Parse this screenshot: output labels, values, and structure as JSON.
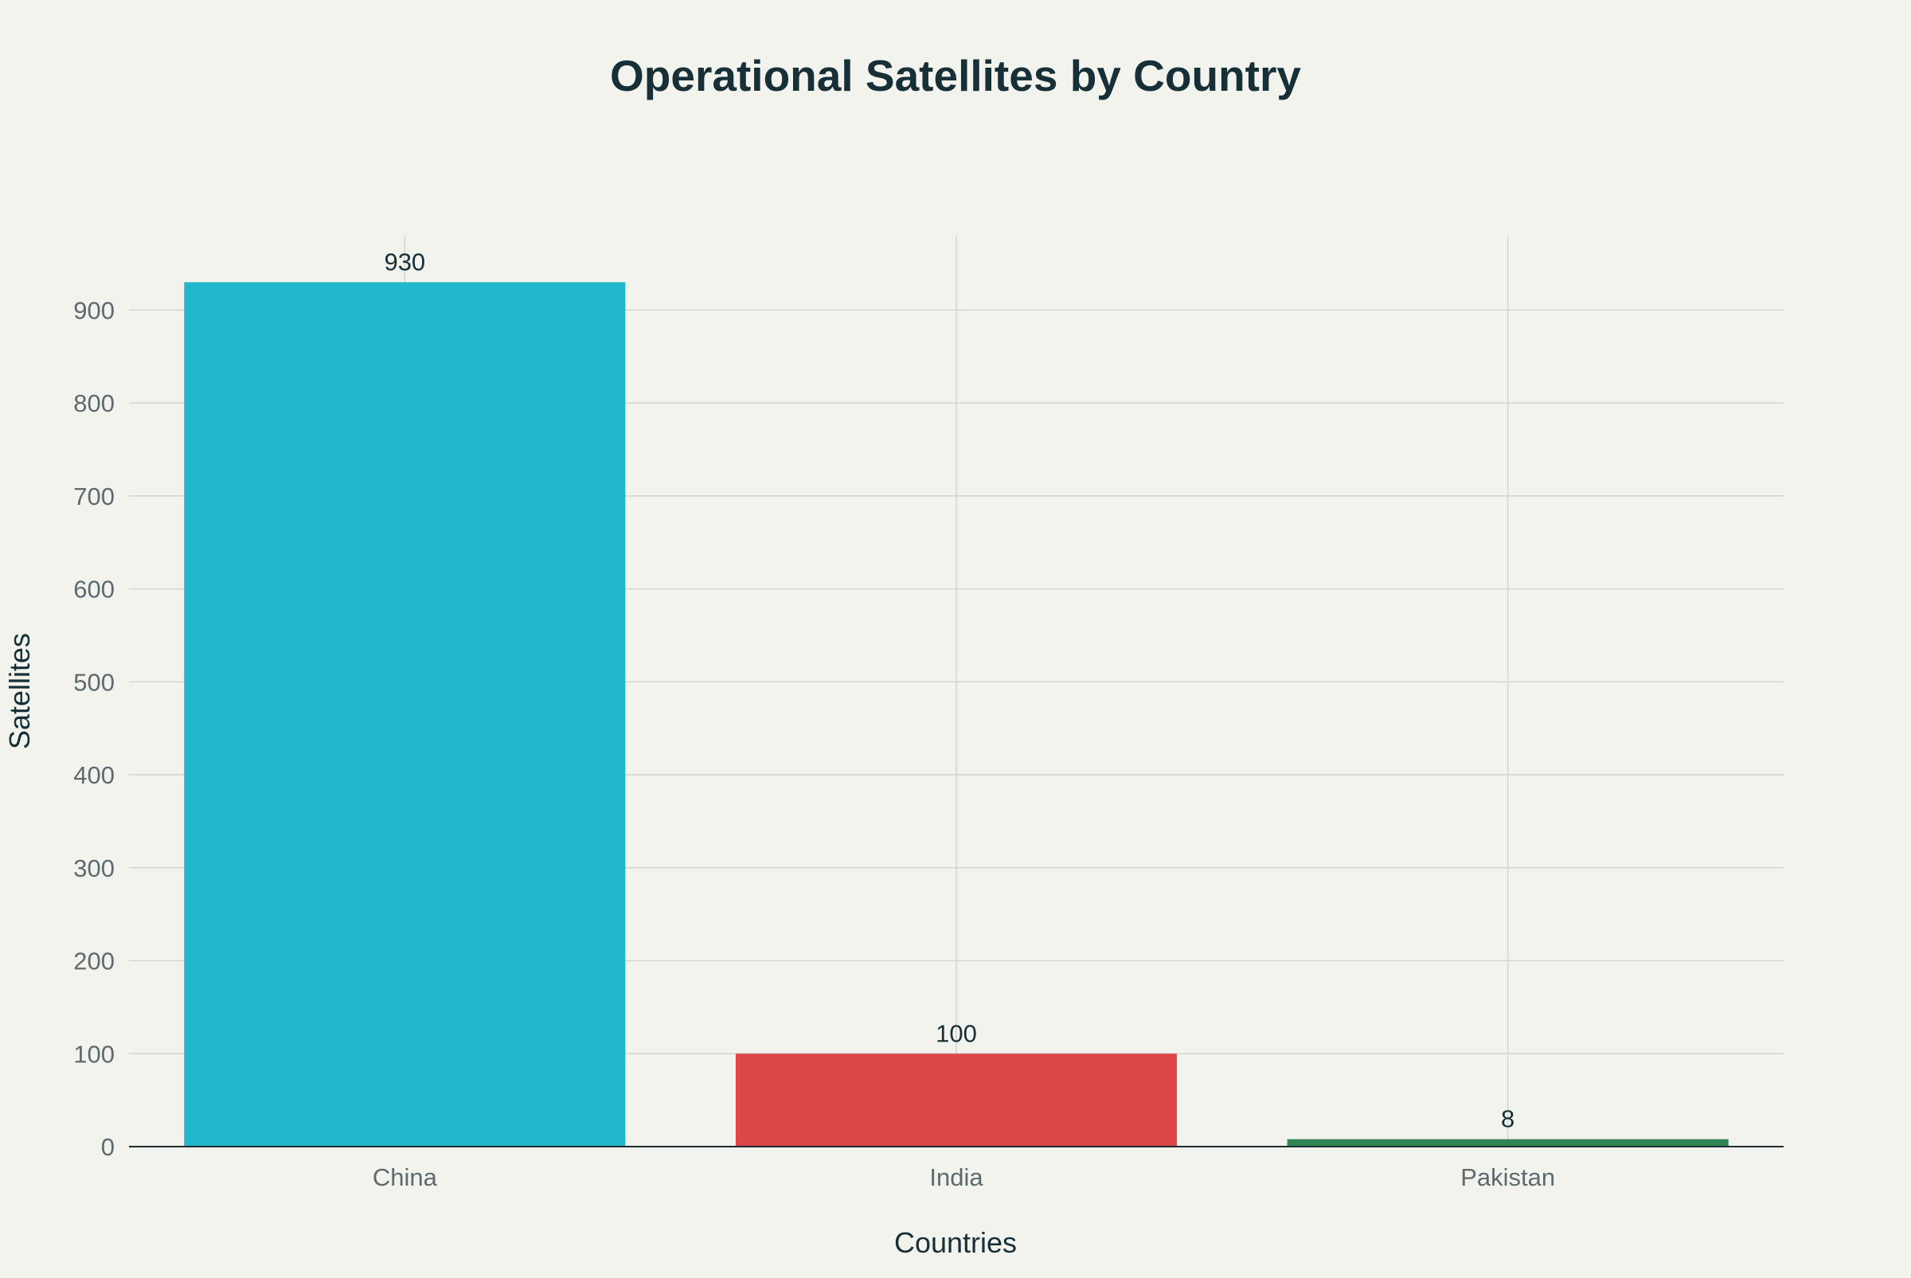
{
  "chart_data": {
    "type": "bar",
    "title": "Operational Satellites by Country",
    "xlabel": "Countries",
    "ylabel": "Satellites",
    "categories": [
      "China",
      "India",
      "Pakistan"
    ],
    "values": [
      930,
      100,
      8
    ],
    "data_labels": [
      "930",
      "100",
      "8"
    ],
    "colors": [
      "#21b7cc",
      "#dd4748",
      "#2f8653"
    ],
    "ylim": [
      0,
      980
    ],
    "yticks": [
      0,
      100,
      200,
      300,
      400,
      500,
      600,
      700,
      800,
      900
    ],
    "ytick_labels": [
      "0",
      "100",
      "200",
      "300",
      "400",
      "500",
      "600",
      "700",
      "800",
      "900"
    ],
    "grid": true,
    "legend": false
  }
}
